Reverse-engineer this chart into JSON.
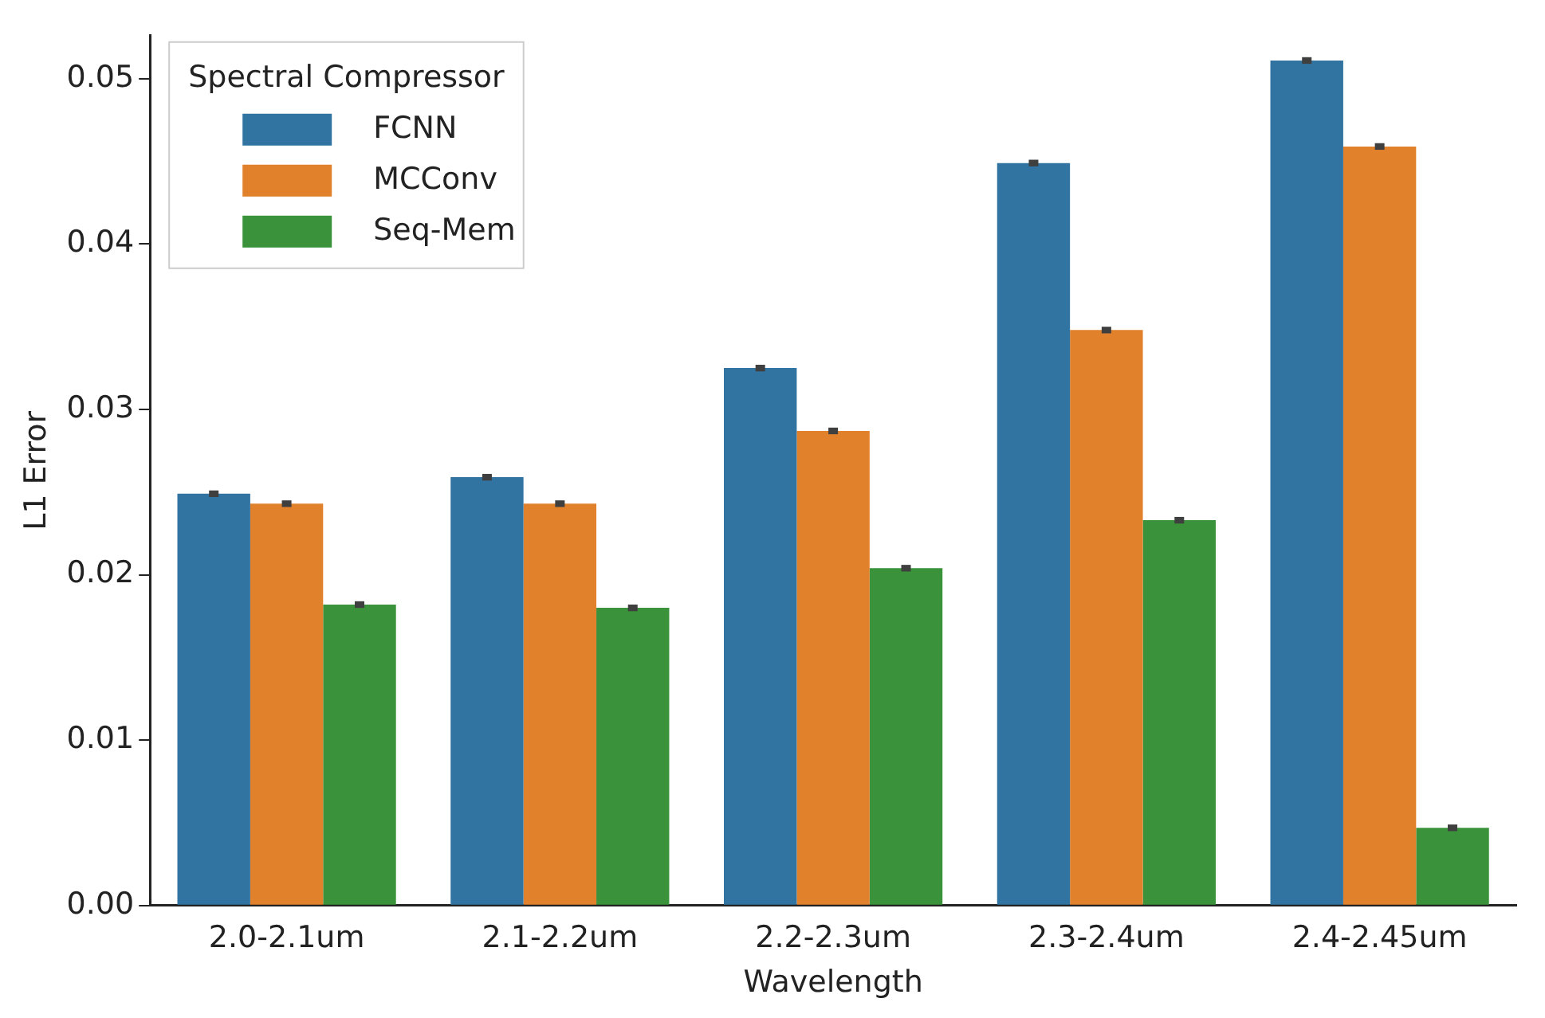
{
  "chart_data": {
    "type": "bar",
    "xlabel": "Wavelength",
    "ylabel": "L1 Error",
    "legend_title": "Spectral Compressor",
    "categories": [
      "2.0-2.1um",
      "2.1-2.2um",
      "2.2-2.3um",
      "2.3-2.4um",
      "2.4-2.45um"
    ],
    "series": [
      {
        "name": "FCNN",
        "color": "#3274a1",
        "values": [
          0.0249,
          0.0259,
          0.0325,
          0.0449,
          0.0511
        ],
        "errors": [
          0.0002,
          0.0002,
          0.0002,
          0.0002,
          0.0002
        ]
      },
      {
        "name": "MCConv",
        "color": "#e1812c",
        "values": [
          0.0243,
          0.0243,
          0.0287,
          0.0348,
          0.0459
        ],
        "errors": [
          0.0002,
          0.0002,
          0.0002,
          0.0002,
          0.0002
        ]
      },
      {
        "name": "Seq-Mem",
        "color": "#3a923a",
        "values": [
          0.0182,
          0.018,
          0.0204,
          0.0233,
          0.0047
        ],
        "errors": [
          0.0002,
          0.0002,
          0.0002,
          0.0002,
          0.0002
        ]
      }
    ],
    "ylim": [
      0,
      0.0526
    ],
    "yticks": [
      {
        "value": 0,
        "label": "0.00"
      },
      {
        "value": 0.01,
        "label": "0.01"
      },
      {
        "value": 0.02,
        "label": "0.02"
      },
      {
        "value": 0.03,
        "label": "0.03"
      },
      {
        "value": 0.04,
        "label": "0.04"
      },
      {
        "value": 0.05,
        "label": "0.05"
      }
    ],
    "grid": false,
    "legend": "top left"
  }
}
